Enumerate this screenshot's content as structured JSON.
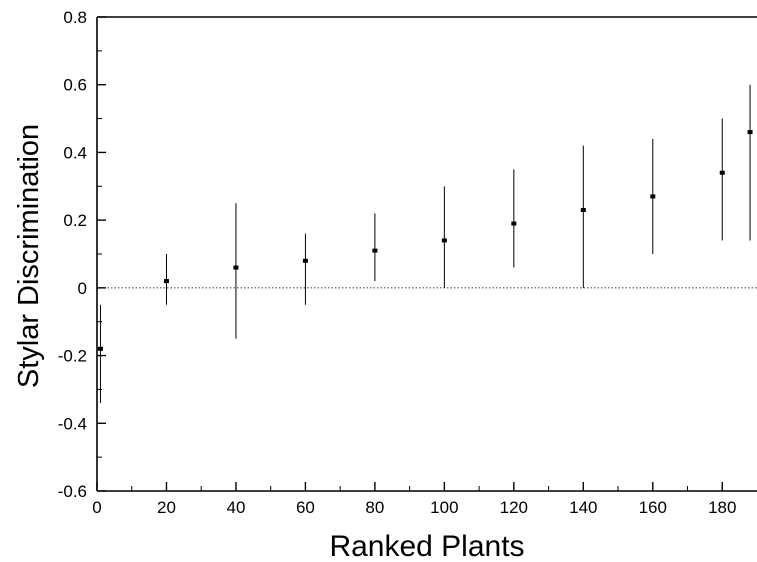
{
  "chart_data": {
    "type": "scatter",
    "title": "",
    "xlabel": "Ranked Plants",
    "ylabel": "Stylar Discrimination",
    "xlim": [
      0,
      190
    ],
    "ylim": [
      -0.6,
      0.8
    ],
    "xticks": [
      "0",
      "20",
      "40",
      "60",
      "80",
      "100",
      "120",
      "140",
      "160",
      "180"
    ],
    "yticks": [
      "-0.6",
      "-0.4",
      "-0.2",
      "0",
      "0.2",
      "0.4",
      "0.6",
      "0.8"
    ],
    "grid": false,
    "legend": "none",
    "reference_line_y": 0,
    "error_bars": true,
    "series": [
      {
        "x": [
          1,
          20,
          40,
          60,
          80,
          100,
          120,
          140,
          160,
          180,
          188
        ],
        "y": [
          -0.18,
          0.02,
          0.06,
          0.08,
          0.11,
          0.14,
          0.19,
          0.23,
          0.27,
          0.34,
          0.46
        ],
        "error_low": [
          -0.34,
          -0.05,
          -0.15,
          -0.05,
          0.02,
          0.0,
          0.06,
          0.0,
          0.1,
          0.14,
          0.14
        ],
        "error_high": [
          -0.05,
          0.1,
          0.25,
          0.16,
          0.22,
          0.3,
          0.35,
          0.42,
          0.44,
          0.5,
          0.6
        ],
        "style": {
          "color": "#000000"
        }
      }
    ]
  }
}
